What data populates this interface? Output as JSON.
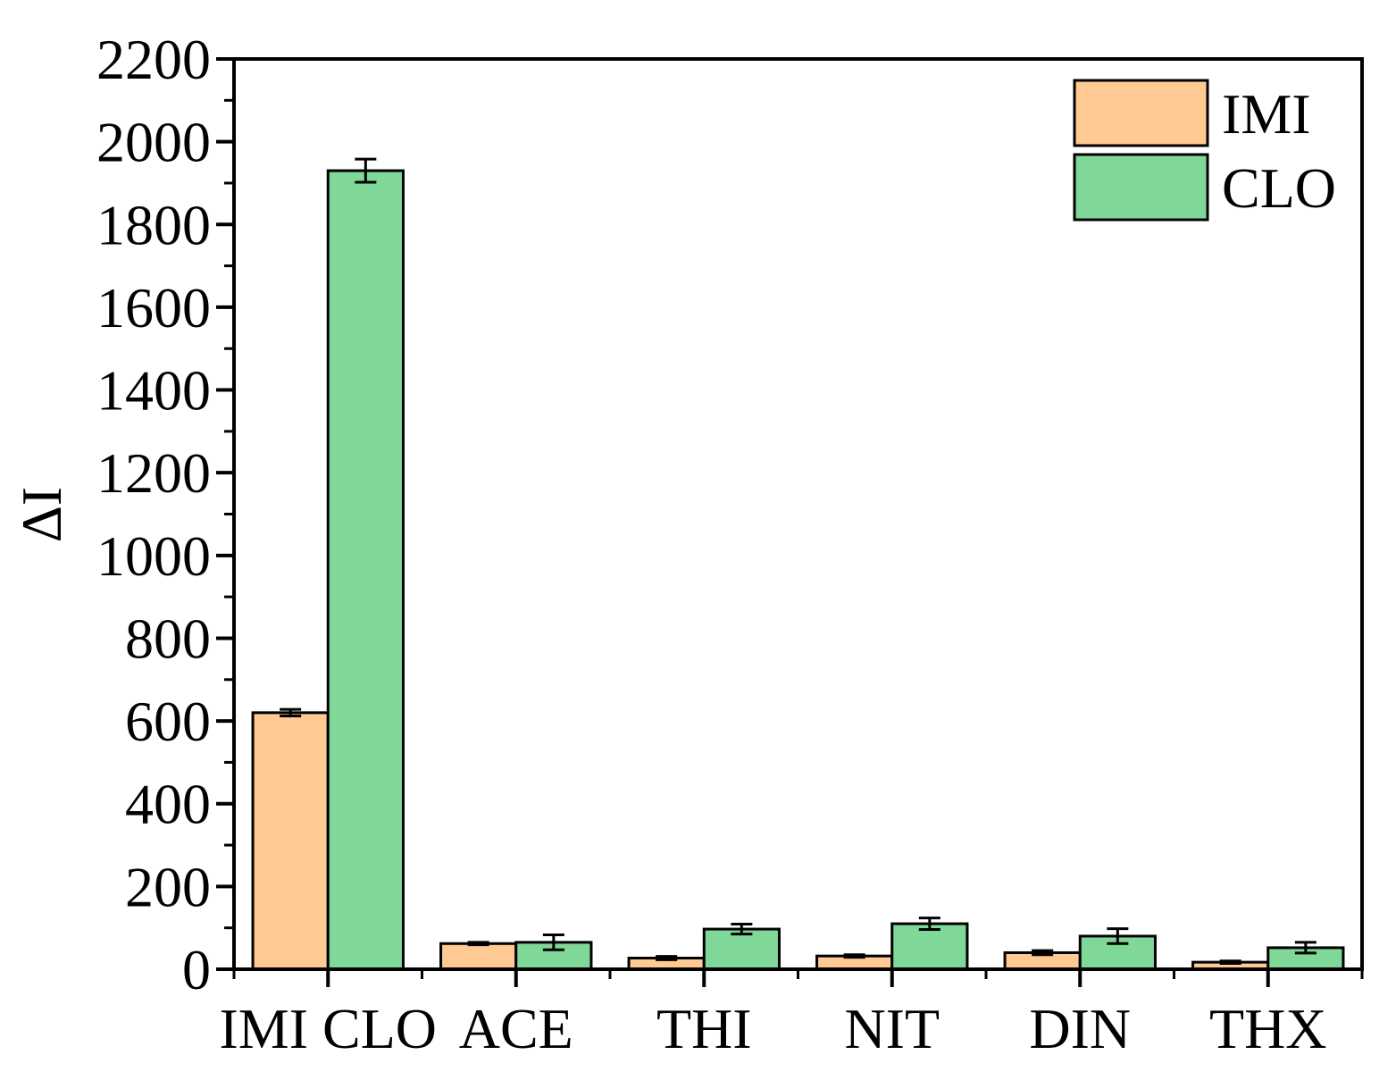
{
  "chart_data": {
    "type": "bar",
    "y_label": "ΔI",
    "categories": [
      "IMI CLO",
      "ACE",
      "THI",
      "NIT",
      "DIN",
      "THX"
    ],
    "series": [
      {
        "name": "IMI",
        "color": "#ffc994",
        "values": [
          620,
          62,
          27,
          32,
          40,
          17
        ],
        "errors": [
          8,
          3,
          4,
          3,
          5,
          3
        ]
      },
      {
        "name": "CLO",
        "color": "#7fd897",
        "values": [
          1930,
          65,
          97,
          110,
          80,
          52
        ],
        "errors": [
          28,
          18,
          12,
          14,
          18,
          13
        ]
      }
    ],
    "ylim": [
      0,
      2200
    ],
    "yticks": [
      0,
      200,
      400,
      600,
      800,
      1000,
      1200,
      1400,
      1600,
      1800,
      2000,
      2200
    ],
    "legend": "top-right"
  }
}
